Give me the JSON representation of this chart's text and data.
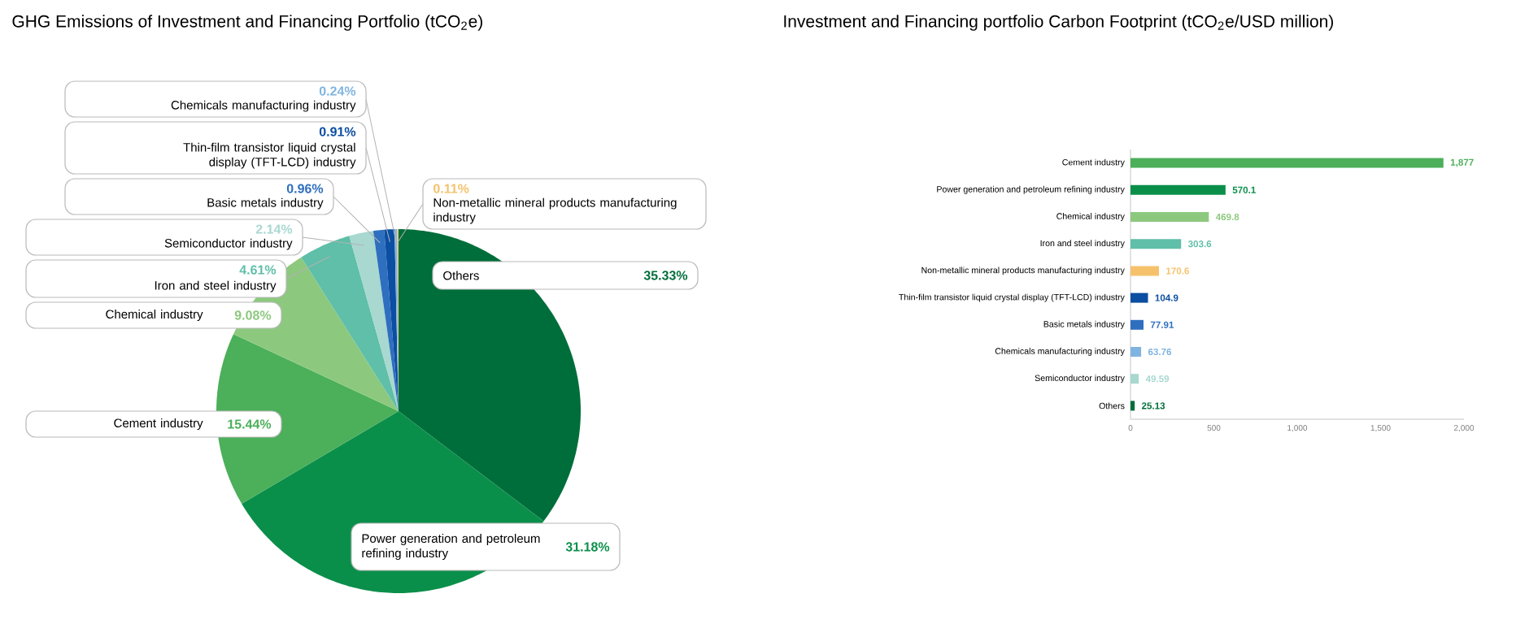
{
  "chart_data": [
    {
      "type": "pie",
      "title": "GHG Emissions of Investment and Financing Portfolio (tCO$_{2}$e)",
      "categories": [
        "Others",
        "Power generation and petroleum refining industry",
        "Cement industry",
        "Chemical industry",
        "Iron and steel industry",
        "Semiconductor industry",
        "Basic metals industry",
        "Thin-film transistor liquid crystal display (TFT-LCD) industry",
        "Chemicals manufacturing industry",
        "Non-metallic mineral products manufacturing industry"
      ],
      "values": [
        35.33,
        31.18,
        15.44,
        9.08,
        4.61,
        2.14,
        0.96,
        0.91,
        0.24,
        0.11
      ],
      "value_labels": [
        "35.33%",
        "31.18%",
        "15.44%",
        "9.08%",
        "4.61%",
        "2.14%",
        "0.96%",
        "0.91%",
        "0.24%",
        "0.11%"
      ],
      "colors": [
        "#006e3a",
        "#0a8f4a",
        "#4caf5a",
        "#8cc97e",
        "#5fbfa8",
        "#a8d8d0",
        "#2f6fbf",
        "#0b4ea2",
        "#7fb4e0",
        "#f5c26b"
      ]
    },
    {
      "type": "bar",
      "orientation": "horizontal",
      "title": "Investment and Financing portfolio Carbon Footprint (tCO$_{2}$e/USD million)",
      "categories": [
        "Cement industry",
        "Power generation and petroleum refining industry",
        "Chemical industry",
        "Iron and steel industry",
        "Non-metallic mineral products manufacturing industry",
        "Thin-film transistor liquid crystal display (TFT-LCD) industry",
        "Basic metals industry",
        "Chemicals manufacturing industry",
        "Semiconductor industry",
        "Others"
      ],
      "values": [
        1877,
        570.1,
        469.8,
        303.6,
        170.6,
        104.9,
        77.91,
        63.76,
        49.59,
        25.13
      ],
      "value_labels": [
        "1,877",
        "570.1",
        "469.8",
        "303.6",
        "170.6",
        "104.9",
        "77.91",
        "63.76",
        "49.59",
        "25.13"
      ],
      "colors": [
        "#4caf5a",
        "#0a8f4a",
        "#8cc97e",
        "#5fbfa8",
        "#f5c26b",
        "#0b4ea2",
        "#2f6fbf",
        "#7fb4e0",
        "#a8d8d0",
        "#006e3a"
      ],
      "xlim": [
        0,
        2000
      ],
      "xticks": [
        0,
        500,
        {
          "value": 1000,
          "label": "1,000"
        },
        {
          "value": 1500,
          "label": "1,500"
        },
        {
          "value": 2000,
          "label": "2,000"
        }
      ]
    }
  ]
}
